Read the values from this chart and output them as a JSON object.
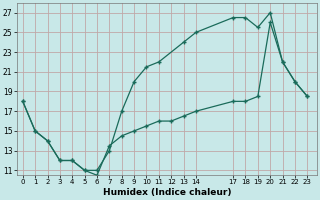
{
  "bg_color": "#c8e8e8",
  "grid_color": "#c0a8a8",
  "line_color": "#1a6b5a",
  "line1_x": [
    0,
    1,
    2,
    3,
    4,
    5,
    6,
    7,
    8,
    9,
    10,
    11,
    13,
    14,
    17,
    18,
    19,
    20,
    21,
    22,
    23
  ],
  "line1_y": [
    18,
    15,
    14,
    12,
    12,
    11,
    11,
    13,
    17,
    20,
    21.5,
    22,
    24,
    25,
    26.5,
    26.5,
    25.5,
    27,
    22,
    20,
    18.5
  ],
  "line2_x": [
    0,
    1,
    2,
    3,
    4,
    5,
    6,
    7,
    8,
    9,
    10,
    11,
    12,
    13,
    14,
    17,
    18,
    19,
    20,
    21,
    22,
    23
  ],
  "line2_y": [
    18,
    15,
    14,
    12,
    12,
    11,
    10.5,
    13.5,
    14.5,
    15,
    15.5,
    16,
    16,
    16.5,
    17,
    18,
    18,
    18.5,
    26,
    22,
    20,
    18.5
  ],
  "xlabel": "Humidex (Indice chaleur)",
  "ylim_min": 10.5,
  "ylim_max": 28.0,
  "xlim_min": -0.5,
  "xlim_max": 23.8,
  "yticks": [
    11,
    13,
    15,
    17,
    19,
    21,
    23,
    25,
    27
  ],
  "xticks": [
    0,
    1,
    2,
    3,
    4,
    5,
    6,
    7,
    8,
    9,
    10,
    11,
    12,
    13,
    14,
    17,
    18,
    19,
    20,
    21,
    22,
    23
  ],
  "figw": 3.2,
  "figh": 2.0,
  "dpi": 100
}
